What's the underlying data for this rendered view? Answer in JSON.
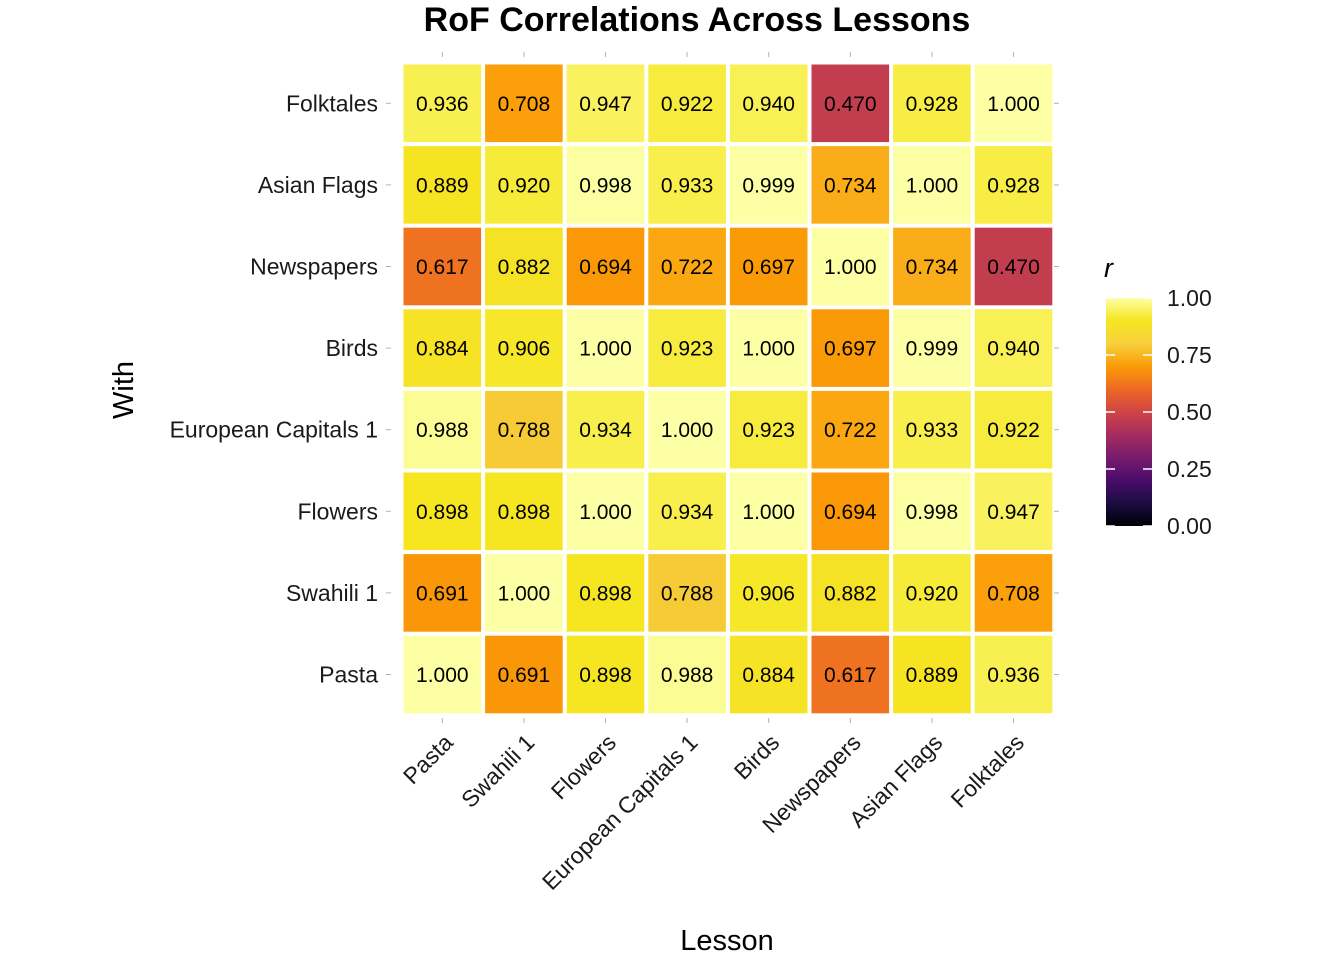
{
  "chart_data": {
    "type": "heatmap",
    "title": "RoF Correlations Across Lessons",
    "xlabel": "Lesson",
    "ylabel": "With",
    "x_categories": [
      "Pasta",
      "Swahili 1",
      "Flowers",
      "European Capitals 1",
      "Birds",
      "Newspapers",
      "Asian Flags",
      "Folktales"
    ],
    "y_categories": [
      "Pasta",
      "Swahili 1",
      "Flowers",
      "European Capitals 1",
      "Birds",
      "Newspapers",
      "Asian Flags",
      "Folktales"
    ],
    "values": [
      [
        1.0,
        0.691,
        0.898,
        0.988,
        0.884,
        0.617,
        0.889,
        0.936
      ],
      [
        0.691,
        1.0,
        0.898,
        0.788,
        0.906,
        0.882,
        0.92,
        0.708
      ],
      [
        0.898,
        0.898,
        1.0,
        0.934,
        1.0,
        0.694,
        0.998,
        0.947
      ],
      [
        0.988,
        0.788,
        0.934,
        1.0,
        0.923,
        0.722,
        0.933,
        0.922
      ],
      [
        0.884,
        0.906,
        1.0,
        0.923,
        1.0,
        0.697,
        0.999,
        0.94
      ],
      [
        0.617,
        0.882,
        0.694,
        0.722,
        0.697,
        1.0,
        0.734,
        0.47
      ],
      [
        0.889,
        0.92,
        0.998,
        0.933,
        0.999,
        0.734,
        1.0,
        0.928
      ],
      [
        0.936,
        0.708,
        0.947,
        0.922,
        0.94,
        0.47,
        0.928,
        1.0
      ]
    ],
    "value_format": "3 decimals",
    "colormap": "inferno",
    "color_range": [
      0,
      1
    ],
    "legend": {
      "title": "r",
      "ticks": [
        "0.00",
        "0.25",
        "0.50",
        "0.75",
        "1.00"
      ],
      "placement": "right"
    },
    "grid": false
  }
}
